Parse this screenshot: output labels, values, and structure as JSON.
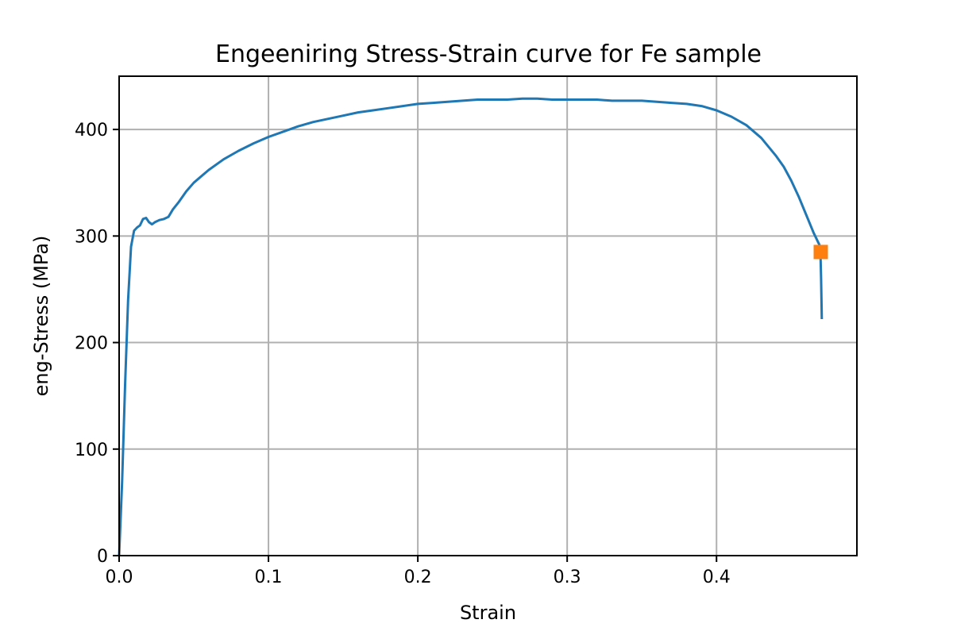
{
  "chart_data": {
    "type": "line",
    "title": "Engeeniring Stress-Strain curve for Fe sample",
    "xlabel": "Strain",
    "ylabel": "eng-Stress (MPa)",
    "xlim": [
      0.0,
      0.494
    ],
    "ylim": [
      0,
      450
    ],
    "x_ticks": [
      0.0,
      0.1,
      0.2,
      0.3,
      0.4
    ],
    "x_tick_labels": [
      "0.0",
      "0.1",
      "0.2",
      "0.3",
      "0.4"
    ],
    "y_ticks": [
      0,
      100,
      200,
      300,
      400
    ],
    "y_tick_labels": [
      "0",
      "100",
      "200",
      "300",
      "400"
    ],
    "grid": true,
    "series": [
      {
        "color": "#1f77b4",
        "x": [
          0.0,
          0.002,
          0.004,
          0.006,
          0.008,
          0.01,
          0.012,
          0.014,
          0.016,
          0.018,
          0.02,
          0.022,
          0.024,
          0.027,
          0.03,
          0.033,
          0.036,
          0.04,
          0.045,
          0.05,
          0.06,
          0.07,
          0.08,
          0.09,
          0.1,
          0.11,
          0.12,
          0.13,
          0.14,
          0.15,
          0.16,
          0.17,
          0.18,
          0.19,
          0.2,
          0.21,
          0.22,
          0.23,
          0.24,
          0.25,
          0.26,
          0.27,
          0.28,
          0.29,
          0.3,
          0.31,
          0.32,
          0.33,
          0.34,
          0.35,
          0.36,
          0.37,
          0.38,
          0.39,
          0.4,
          0.41,
          0.42,
          0.43,
          0.44,
          0.445,
          0.45,
          0.455,
          0.46,
          0.465,
          0.4695,
          0.47,
          0.4705
        ],
        "y": [
          0,
          70,
          160,
          240,
          290,
          305,
          308,
          310,
          316,
          317,
          313,
          311,
          313,
          315,
          316,
          318,
          325,
          332,
          342,
          350,
          362,
          372,
          380,
          387,
          393,
          398,
          403,
          407,
          410,
          413,
          416,
          418,
          420,
          422,
          424,
          425,
          426,
          427,
          428,
          428,
          428,
          429,
          429,
          428,
          428,
          428,
          428,
          427,
          427,
          427,
          426,
          425,
          424,
          422,
          418,
          412,
          404,
          392,
          375,
          365,
          352,
          337,
          320,
          303,
          290,
          260,
          222
        ]
      },
      {
        "color": "#ff7f0e",
        "marker": "square",
        "x": [
          0.4698
        ],
        "y": [
          285
        ]
      }
    ]
  }
}
